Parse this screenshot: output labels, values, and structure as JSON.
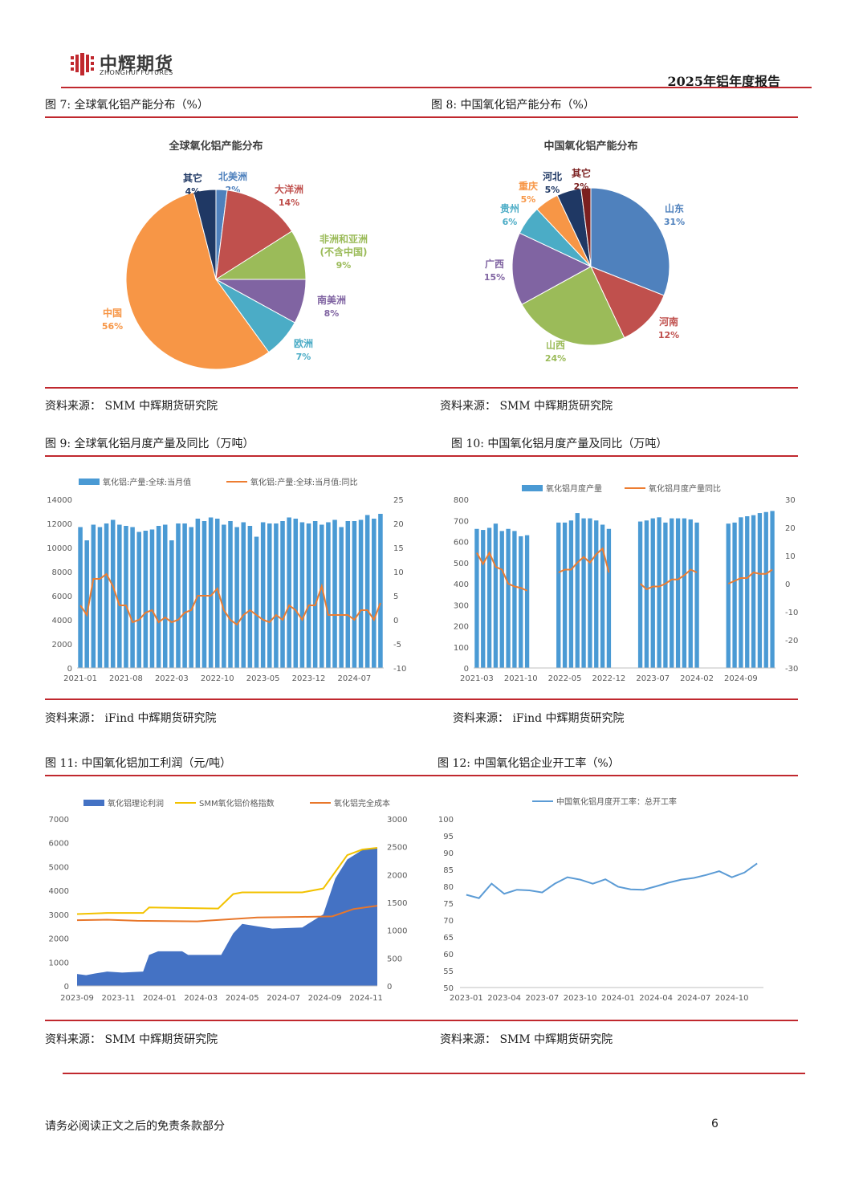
{
  "header": {
    "logo_cn": "中辉期货",
    "logo_en": "ZHONGHUI FUTURES",
    "report_title": "2025年铝年度报告"
  },
  "figures": {
    "fig7": {
      "caption": "图 7: 全球氧化铝产能分布（%）",
      "source": "资料来源：  SMM 中辉期货研究院"
    },
    "fig8": {
      "caption": "图 8: 中国氧化铝产能分布（%）",
      "source": "资料来源：  SMM 中辉期货研究院"
    },
    "fig9": {
      "caption": "图 9: 全球氧化铝月度产量及同比（万吨）",
      "source": "资料来源：  iFind 中辉期货研究院"
    },
    "fig10": {
      "caption": "图 10: 中国氧化铝月度产量及同比（万吨）",
      "source": "资料来源：  iFind 中辉期货研究院"
    },
    "fig11": {
      "caption": "图 11: 中国氧化铝加工利润（元/吨）",
      "source": "资料来源：  SMM 中辉期货研究院"
    },
    "fig12": {
      "caption": "图 12: 中国氧化铝企业开工率（%）",
      "source": "资料来源：  SMM 中辉期货研究院"
    }
  },
  "footer": {
    "disclaimer": "请务必阅读正文之后的免责条款部分",
    "page": "6"
  },
  "chart_data": [
    {
      "id": "fig7",
      "type": "pie",
      "title": "全球氧化铝产能分布",
      "slices": [
        {
          "label": "北美洲",
          "value": 2,
          "color": "#4f81bd"
        },
        {
          "label": "大洋洲",
          "value": 14,
          "color": "#c0504d"
        },
        {
          "label": "非洲和亚洲(不含中国)",
          "value": 9,
          "color": "#9bbb59"
        },
        {
          "label": "南美洲",
          "value": 8,
          "color": "#8064a2"
        },
        {
          "label": "欧洲",
          "value": 7,
          "color": "#4bacc6"
        },
        {
          "label": "中国",
          "value": 56,
          "color": "#f79646"
        },
        {
          "label": "其它",
          "value": 4,
          "color": "#1f3864"
        }
      ]
    },
    {
      "id": "fig8",
      "type": "pie",
      "title": "中国氧化铝产能分布",
      "slices": [
        {
          "label": "山东",
          "value": 31,
          "color": "#4f81bd"
        },
        {
          "label": "河南",
          "value": 12,
          "color": "#c0504d"
        },
        {
          "label": "山西",
          "value": 24,
          "color": "#9bbb59"
        },
        {
          "label": "广西",
          "value": 15,
          "color": "#8064a2"
        },
        {
          "label": "贵州",
          "value": 6,
          "color": "#4bacc6"
        },
        {
          "label": "重庆",
          "value": 5,
          "color": "#f79646"
        },
        {
          "label": "河北",
          "value": 5,
          "color": "#1f3864"
        },
        {
          "label": "其它",
          "value": 2,
          "color": "#7b2020"
        }
      ]
    },
    {
      "id": "fig9",
      "type": "bar",
      "series": [
        {
          "name": "氧化铝:产量:全球:当月值",
          "axis": "left",
          "color": "#4a9ad4",
          "values": [
            11700,
            10600,
            11900,
            11700,
            12000,
            12300,
            11900,
            11800,
            11700,
            11300,
            11400,
            11500,
            11800,
            11900,
            10600,
            12000,
            12000,
            11700,
            12400,
            12200,
            12500,
            12400,
            11900,
            12200,
            11700,
            12100,
            11800,
            10900,
            12100,
            12000,
            12000,
            12200,
            12500,
            12400,
            12100,
            12000,
            12200,
            11900,
            12100,
            12300,
            11700,
            12200,
            12200,
            12300,
            12700,
            12400,
            12800
          ]
        },
        {
          "name": "氧化铝:产量:全球:当月值:同比",
          "axis": "right",
          "color": "#ed7d31",
          "values": [
            3,
            1,
            8.5,
            8.5,
            9.5,
            7,
            3,
            3,
            -0.5,
            0,
            1.5,
            2,
            -0.5,
            0.5,
            -0.5,
            0,
            1.5,
            2,
            5,
            5,
            5,
            6.5,
            2,
            0,
            -1,
            1,
            2,
            1,
            0,
            -0.5,
            1,
            0,
            3,
            2,
            0,
            3,
            3,
            7,
            1,
            1,
            1,
            1,
            0,
            2,
            2,
            0,
            3.5
          ]
        }
      ],
      "x_tick_labels": [
        "2021-01",
        "2021-08",
        "2022-03",
        "2022-10",
        "2023-05",
        "2023-12",
        "2024-07"
      ],
      "ylim_left": [
        0,
        14000
      ],
      "ylim_right": [
        -10,
        25
      ],
      "y_ticks_left": [
        "0",
        "2000",
        "4000",
        "6000",
        "8000",
        "10000",
        "12000",
        "14000"
      ],
      "y_ticks_right": [
        "-10",
        "-5",
        "0",
        "5",
        "10",
        "15",
        "20",
        "25"
      ],
      "legend": "top"
    },
    {
      "id": "fig10",
      "type": "bar",
      "series": [
        {
          "name": "氧化铝月度产量",
          "axis": "left",
          "color": "#4a9ad4",
          "values": [
            660,
            655,
            665,
            685,
            650,
            660,
            650,
            625,
            630,
            null,
            null,
            null,
            null,
            690,
            690,
            700,
            735,
            710,
            710,
            700,
            680,
            660,
            null,
            null,
            null,
            null,
            695,
            700,
            710,
            715,
            690,
            710,
            710,
            710,
            705,
            690,
            null,
            null,
            null,
            null,
            685,
            690,
            715,
            720,
            725,
            735,
            740,
            745
          ]
        },
        {
          "name": "氧化铝月度产量同比",
          "axis": "right",
          "color": "#ed7d31",
          "values": [
            11,
            7,
            11,
            6,
            5,
            0,
            -1,
            -1.5,
            -2.5,
            null,
            null,
            null,
            null,
            4,
            5,
            5,
            7.5,
            9.5,
            7.5,
            10.5,
            12.5,
            4,
            null,
            null,
            null,
            null,
            0,
            -2,
            -1,
            -1,
            0,
            1.5,
            1.5,
            3,
            5,
            4,
            null,
            null,
            null,
            null,
            0,
            1,
            2,
            2,
            4,
            3.5,
            3.5,
            5
          ]
        }
      ],
      "x_tick_labels": [
        "2021-03",
        "2021-10",
        "2022-05",
        "2022-12",
        "2023-07",
        "2024-02",
        "2024-09"
      ],
      "ylim_left": [
        0,
        800
      ],
      "ylim_right": [
        -30,
        30
      ],
      "y_ticks_left": [
        "0",
        "100",
        "200",
        "300",
        "400",
        "500",
        "600",
        "700",
        "800"
      ],
      "y_ticks_right": [
        "-30",
        "-20",
        "-10",
        "0",
        "10",
        "20",
        "30"
      ],
      "legend": "top"
    },
    {
      "id": "fig11",
      "type": "area",
      "series": [
        {
          "name": "氧化铝理论利润",
          "axis": "left",
          "color": "#4472c4",
          "kind": "area",
          "points": [
            [
              0,
              500
            ],
            [
              0.03,
              450
            ],
            [
              0.06,
              520
            ],
            [
              0.1,
              600
            ],
            [
              0.15,
              560
            ],
            [
              0.22,
              600
            ],
            [
              0.24,
              1300
            ],
            [
              0.27,
              1450
            ],
            [
              0.35,
              1450
            ],
            [
              0.37,
              1300
            ],
            [
              0.48,
              1300
            ],
            [
              0.52,
              2200
            ],
            [
              0.55,
              2600
            ],
            [
              0.6,
              2500
            ],
            [
              0.65,
              2400
            ],
            [
              0.75,
              2450
            ],
            [
              0.82,
              3000
            ],
            [
              0.86,
              4500
            ],
            [
              0.9,
              5300
            ],
            [
              0.95,
              5700
            ],
            [
              1.0,
              5800
            ]
          ]
        },
        {
          "name": "SMM氧化铝价格指数",
          "axis": "right",
          "color": "#f2c200",
          "kind": "line",
          "points": [
            [
              0,
              1290
            ],
            [
              0.1,
              1310
            ],
            [
              0.22,
              1310
            ],
            [
              0.24,
              1410
            ],
            [
              0.47,
              1390
            ],
            [
              0.52,
              1650
            ],
            [
              0.55,
              1680
            ],
            [
              0.75,
              1680
            ],
            [
              0.82,
              1750
            ],
            [
              0.86,
              2050
            ],
            [
              0.9,
              2350
            ],
            [
              0.95,
              2450
            ],
            [
              1.0,
              2480
            ]
          ]
        },
        {
          "name": "氧化铝完全成本",
          "axis": "right",
          "color": "#e8772b",
          "kind": "line",
          "points": [
            [
              0,
              1180
            ],
            [
              0.1,
              1190
            ],
            [
              0.2,
              1170
            ],
            [
              0.4,
              1160
            ],
            [
              0.6,
              1230
            ],
            [
              0.75,
              1240
            ],
            [
              0.85,
              1250
            ],
            [
              0.92,
              1380
            ],
            [
              1.0,
              1440
            ]
          ]
        }
      ],
      "x_tick_labels": [
        "2023-09",
        "2023-11",
        "2024-01",
        "2024-03",
        "2024-05",
        "2024-07",
        "2024-09",
        "2024-11"
      ],
      "ylim_left": [
        0,
        7000
      ],
      "ylim_right": [
        0,
        3000
      ],
      "y_ticks_left": [
        "0",
        "1000",
        "2000",
        "3000",
        "4000",
        "5000",
        "6000",
        "7000"
      ],
      "y_ticks_right": [
        "0",
        "500",
        "1000",
        "1500",
        "2000",
        "2500",
        "3000"
      ],
      "legend": "top"
    },
    {
      "id": "fig12",
      "type": "line",
      "series": [
        {
          "name": "中国氧化铝月度开工率：总开工率",
          "color": "#5b9bd5",
          "values": [
            77.5,
            76.5,
            80.8,
            77.8,
            79,
            78.8,
            78.2,
            80.8,
            82.7,
            82,
            80.8,
            82.1,
            79.9,
            79.1,
            79,
            80,
            81.1,
            82,
            82.5,
            83.4,
            84.5,
            82.7,
            84.1,
            86.8
          ]
        }
      ],
      "x_tick_labels": [
        "2023-01",
        "2023-04",
        "2023-07",
        "2023-10",
        "2024-01",
        "2024-04",
        "2024-07",
        "2024-10"
      ],
      "ylim": [
        50,
        100
      ],
      "y_ticks": [
        "50",
        "55",
        "60",
        "65",
        "70",
        "75",
        "80",
        "85",
        "90",
        "95",
        "100"
      ],
      "legend": "top"
    }
  ]
}
